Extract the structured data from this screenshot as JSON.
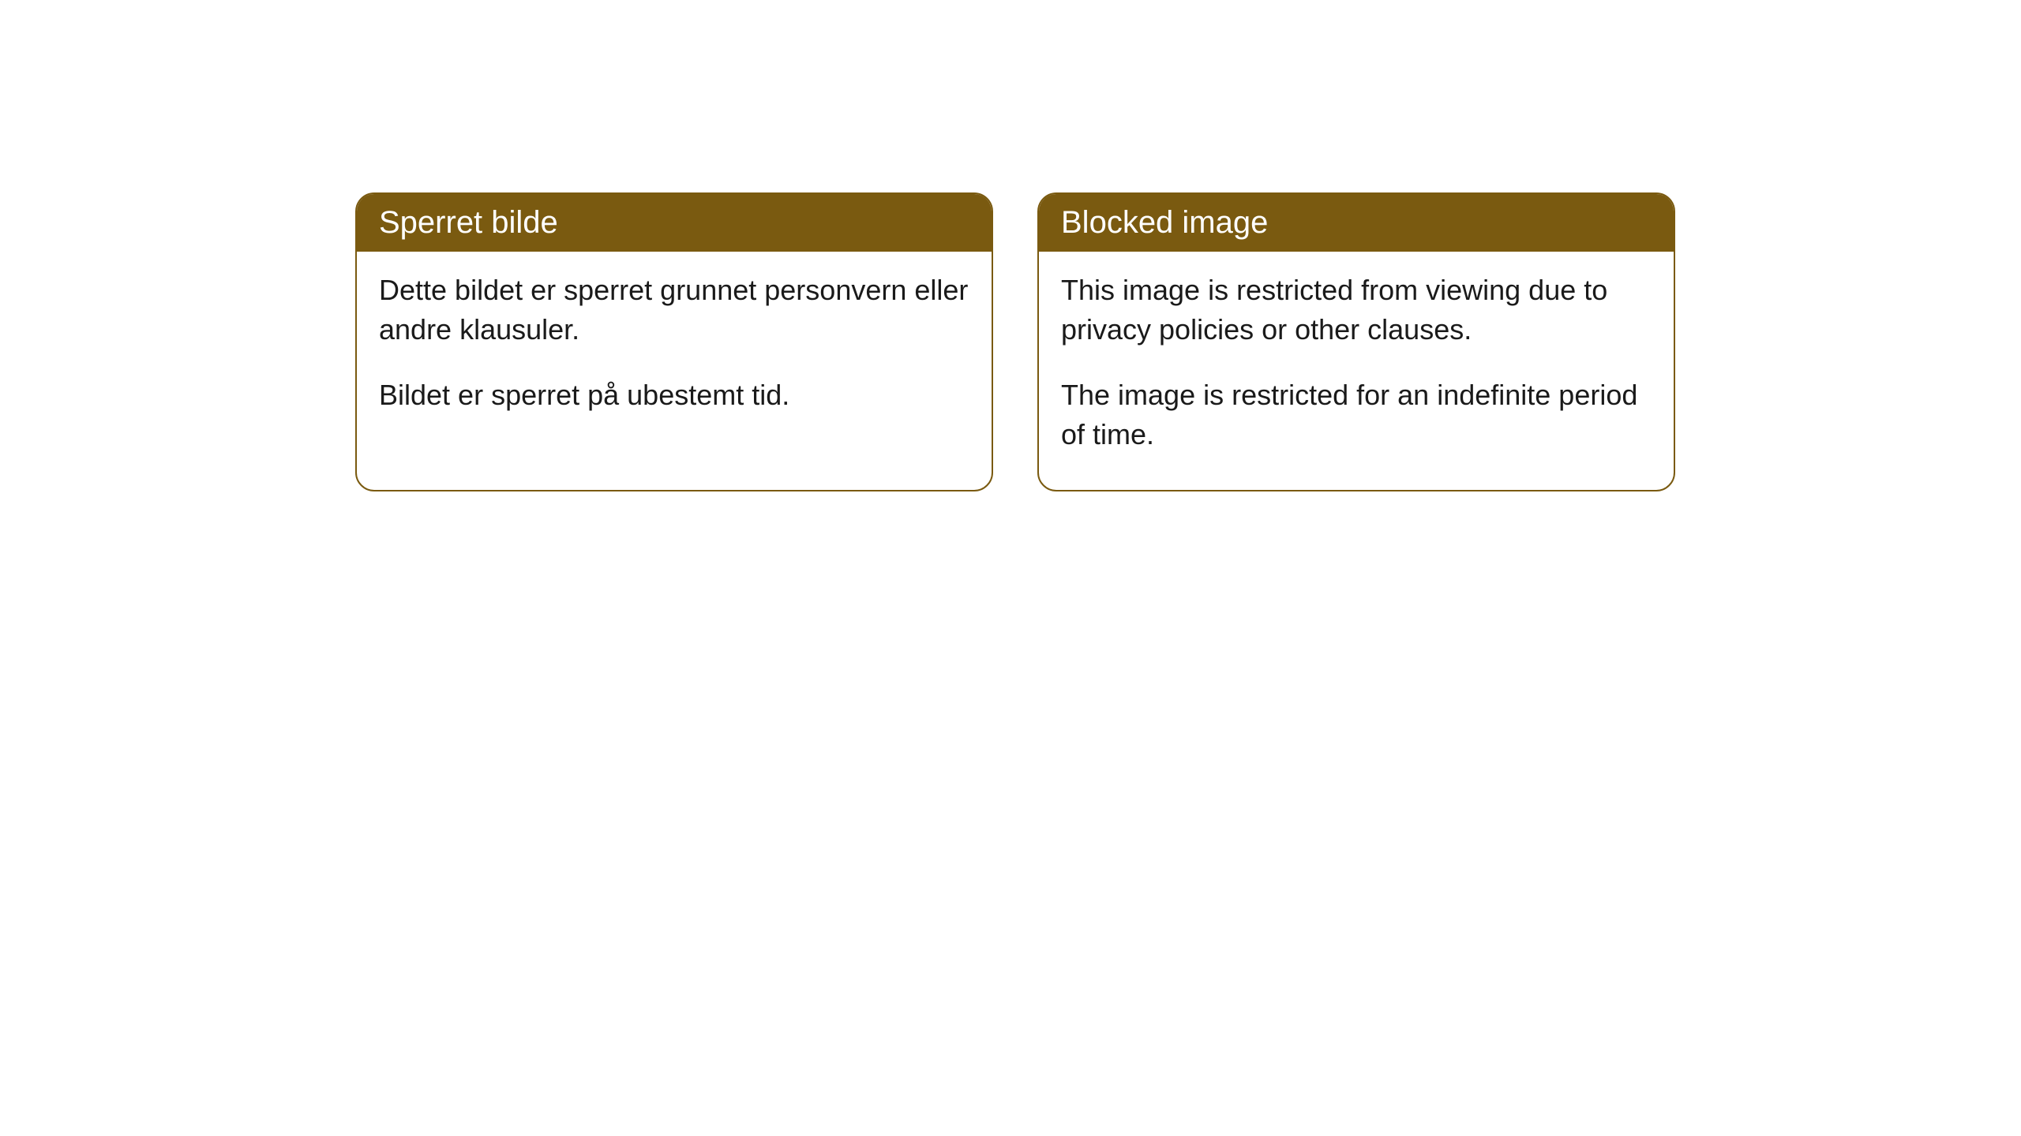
{
  "cards": [
    {
      "title": "Sperret bilde",
      "paragraph1": "Dette bildet er sperret grunnet personvern eller andre klausuler.",
      "paragraph2": "Bildet er sperret på ubestemt tid."
    },
    {
      "title": "Blocked image",
      "paragraph1": "This image is restricted from viewing due to privacy policies or other clauses.",
      "paragraph2": "The image is restricted for an indefinite period of time."
    }
  ],
  "styling": {
    "header_background": "#7a5a10",
    "header_text_color": "#ffffff",
    "border_color": "#7a5a10",
    "body_background": "#ffffff",
    "body_text_color": "#1a1a1a",
    "border_radius": 24,
    "header_fontsize": 40,
    "body_fontsize": 36
  }
}
